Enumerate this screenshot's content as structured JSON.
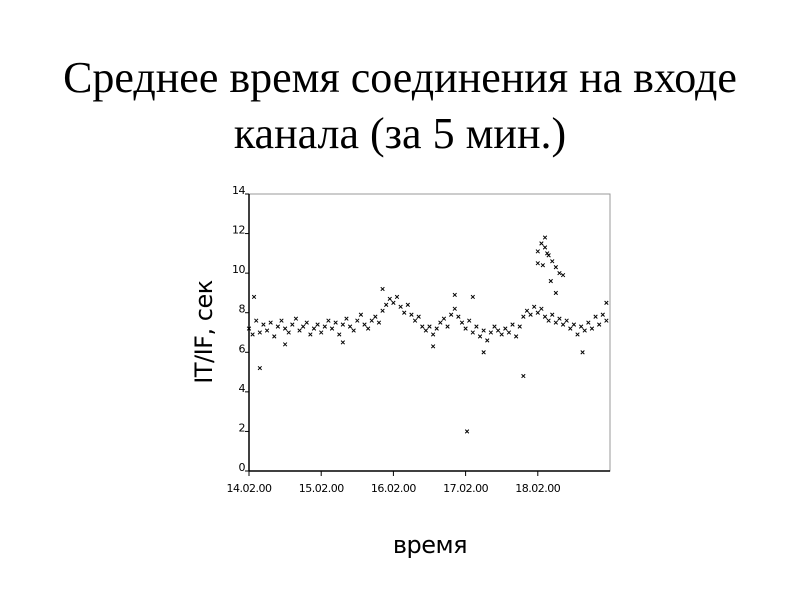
{
  "chart_data": {
    "type": "scatter",
    "title": "Среднее время соединения на входе канала (за 5 мин.)",
    "x_label": "время",
    "y_label": "IT/IF, сек",
    "color": "#000000",
    "xlim": [
      0,
      5
    ],
    "ylim": [
      0,
      14
    ],
    "xticks": [
      {
        "value": 0,
        "label": "14.02.00"
      },
      {
        "value": 1,
        "label": "15.02.00"
      },
      {
        "value": 2,
        "label": "16.02.00"
      },
      {
        "value": 3,
        "label": "17.02.00"
      },
      {
        "value": 4,
        "label": "18.02.00"
      }
    ],
    "yticks": [
      0,
      2,
      4,
      6,
      8,
      10,
      12,
      14
    ],
    "x": [
      0.0,
      0.05,
      0.1,
      0.15,
      0.2,
      0.25,
      0.3,
      0.35,
      0.4,
      0.45,
      0.5,
      0.55,
      0.6,
      0.65,
      0.7,
      0.75,
      0.8,
      0.85,
      0.9,
      0.95,
      1.0,
      1.05,
      1.1,
      1.15,
      1.2,
      1.25,
      1.3,
      1.35,
      1.4,
      1.45,
      1.5,
      1.55,
      1.6,
      1.65,
      1.7,
      1.75,
      1.8,
      1.85,
      1.9,
      1.95,
      2.0,
      2.05,
      2.1,
      2.15,
      2.2,
      2.25,
      2.3,
      2.35,
      2.4,
      2.45,
      2.5,
      2.55,
      2.6,
      2.65,
      2.7,
      2.75,
      2.8,
      2.85,
      2.9,
      2.95,
      3.0,
      3.05,
      3.1,
      3.15,
      3.2,
      3.25,
      3.3,
      3.35,
      3.4,
      3.45,
      3.5,
      3.55,
      3.6,
      3.65,
      3.7,
      3.75,
      3.8,
      3.85,
      3.9,
      3.95,
      4.0,
      4.05,
      4.1,
      4.15,
      4.2,
      4.25,
      4.3,
      4.35,
      4.4,
      4.45,
      4.5,
      4.55,
      4.6,
      4.65,
      4.7,
      4.75,
      4.8,
      4.85,
      4.9,
      4.95,
      0.07,
      0.15,
      0.5,
      1.3,
      1.85,
      2.55,
      2.85,
      3.02,
      3.1,
      3.25,
      3.8,
      4.0,
      4.05,
      4.1,
      4.1,
      4.13,
      4.0,
      4.07,
      4.15,
      4.2,
      4.25,
      4.3,
      4.35,
      4.18,
      4.25,
      4.62,
      4.95
    ],
    "values": [
      7.2,
      6.9,
      7.6,
      7.0,
      7.4,
      7.1,
      7.5,
      6.8,
      7.3,
      7.6,
      7.2,
      7.0,
      7.4,
      7.7,
      7.1,
      7.3,
      7.5,
      6.9,
      7.2,
      7.4,
      7.0,
      7.3,
      7.6,
      7.2,
      7.5,
      6.9,
      7.4,
      7.7,
      7.3,
      7.1,
      7.6,
      7.9,
      7.4,
      7.2,
      7.6,
      7.8,
      7.5,
      8.1,
      8.4,
      8.7,
      8.5,
      8.8,
      8.3,
      8.0,
      8.4,
      7.9,
      7.6,
      7.8,
      7.3,
      7.1,
      7.3,
      6.9,
      7.2,
      7.5,
      7.7,
      7.3,
      7.9,
      8.2,
      7.8,
      7.5,
      7.2,
      7.6,
      7.0,
      7.3,
      6.8,
      7.1,
      6.6,
      7.0,
      7.3,
      7.1,
      6.9,
      7.2,
      7.0,
      7.4,
      6.8,
      7.3,
      7.8,
      8.1,
      7.9,
      8.3,
      8.0,
      8.2,
      7.8,
      7.6,
      7.9,
      7.5,
      7.7,
      7.4,
      7.6,
      7.2,
      7.4,
      6.9,
      7.3,
      7.1,
      7.5,
      7.2,
      7.8,
      7.4,
      7.9,
      7.6,
      8.8,
      5.2,
      6.4,
      6.5,
      9.2,
      6.3,
      8.9,
      2.0,
      8.8,
      6.0,
      4.8,
      11.1,
      11.5,
      11.8,
      11.3,
      11.0,
      10.5,
      10.4,
      10.9,
      10.6,
      10.3,
      10.0,
      9.9,
      9.6,
      9.0,
      6.0,
      8.5
    ]
  }
}
